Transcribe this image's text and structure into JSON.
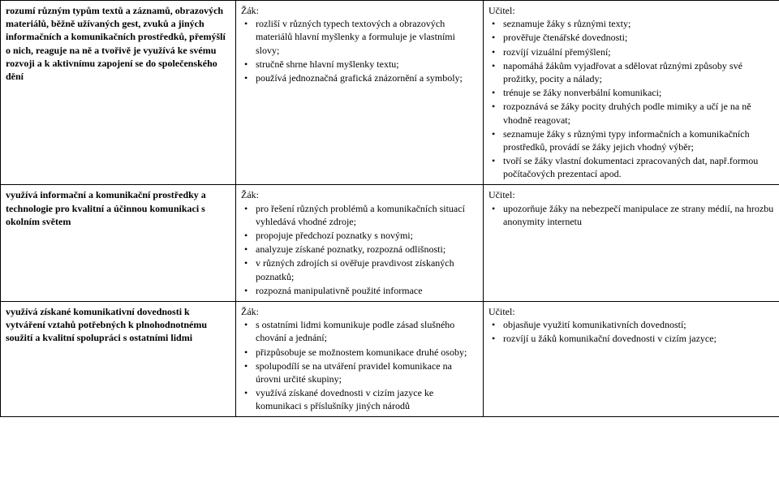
{
  "rows": [
    {
      "col1": {
        "bold_text": "rozumí různým typům textů a záznamů, obrazových materiálů, běžně užívaných gest, zvuků a jiných informačních a komunikačních prostředků, přemýšlí o nich, reaguje na ně a tvořivě je využívá ke svému rozvoji a k aktivnímu zapojení se do společenského dění"
      },
      "col2": {
        "label": "Žák:",
        "items": [
          "rozliší v různých typech textových a obrazových materiálů hlavní myšlenky a formuluje je vlastními slovy;",
          "stručně shrne hlavní myšlenky textu;",
          "používá jednoznačná grafická znázornění a symboly;"
        ]
      },
      "col3": {
        "label": "Učitel:",
        "items": [
          "seznamuje žáky s různými texty;",
          "prověřuje čtenářské dovednosti;",
          "rozvíjí vizuální přemýšlení;",
          "napomáhá žákům vyjadřovat a sdělovat různými způsoby své prožitky, pocity a nálady;",
          "trénuje se žáky nonverbální komunikaci;",
          "rozpoznává se žáky pocity druhých podle mimiky a učí je na ně vhodně reagovat;",
          "seznamuje žáky s různými typy informačních a komunikačních prostředků, provádí se žáky jejich vhodný výběr;",
          "tvoří se žáky vlastní dokumentaci zpracovaných dat, např.formou počítačových prezentací apod."
        ]
      }
    },
    {
      "col1": {
        "bold_text": "využívá informační a komunikační prostředky a technologie pro kvalitní a účinnou komunikaci s okolním světem"
      },
      "col2": {
        "label": "Žák:",
        "items": [
          "pro řešení různých problémů a komunikačních situací vyhledává vhodné zdroje;",
          "propojuje předchozí poznatky s novými;",
          "analyzuje získané poznatky, rozpozná odlišnosti;",
          "v různých zdrojích si ověřuje pravdivost získaných poznatků;",
          "rozpozná manipulativně použité informace"
        ]
      },
      "col3": {
        "label": "Učitel:",
        "items": [
          "upozorňuje žáky na nebezpečí manipulace ze strany médií, na hrozbu anonymity internetu"
        ]
      }
    },
    {
      "col1": {
        "bold_text": "využívá získané komunikativní dovednosti k vytváření vztahů potřebných k plnohodnotnému soužití a kvalitní spolupráci s ostatními lidmi"
      },
      "col2": {
        "label": "Žák:",
        "items": [
          "s ostatními lidmi komunikuje podle zásad slušného chování a jednání;",
          "přizpůsobuje se možnostem komunikace druhé osoby;",
          "spolupodílí se na utváření pravidel komunikace na úrovni určité skupiny;",
          "využívá získané dovednosti v cizím jazyce ke komunikaci s příslušníky jiných národů"
        ]
      },
      "col3": {
        "label": "Učitel:",
        "items": [
          "objasňuje využití komunikativních dovedností;",
          "rozvíjí u žáků komunikační dovednosti v cizím jazyce;"
        ]
      }
    }
  ]
}
